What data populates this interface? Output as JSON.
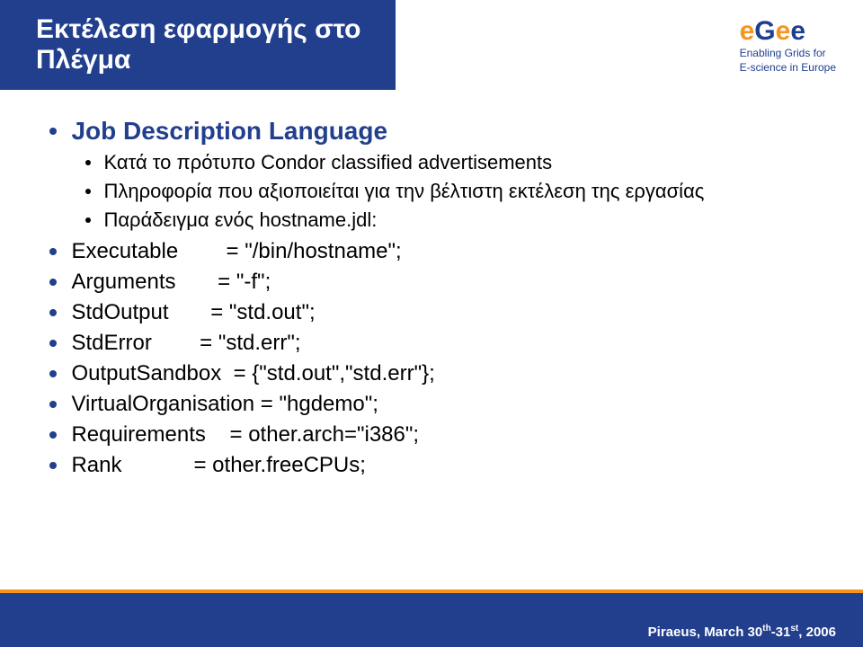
{
  "header": {
    "title": "Εκτέλεση εφαρμογής στο Πλέγμα"
  },
  "logo": {
    "tagline1": "Enabling Grids for",
    "tagline2": "E-science in Europe"
  },
  "main": {
    "heading": "Job Description Language",
    "sub1": "Κατά το πρότυπο Condor classified advertisements",
    "sub2": "Πληροφορία που αξιοποιείται για την βέλτιστη εκτέλεση της εργασίας",
    "sub3": "Παράδειγμα ενός hostname.jdl:"
  },
  "code": {
    "l1": "Executable        = \"/bin/hostname\";",
    "l2": "Arguments       = \"-f\";",
    "l3": "StdOutput       = \"std.out\";",
    "l4": "StdError        = \"std.err\";",
    "l5": "OutputSandbox  = {\"std.out\",\"std.err\"};",
    "l6": "VirtualOrganisation = \"hgdemo\";",
    "l7": "Requirements    = other.arch=\"i386\";",
    "l8": "Rank            = other.freeCPUs;"
  },
  "footer": {
    "text_part1": "Piraeus, March 30",
    "th": "th",
    "dash": "-31",
    "st": "st",
    "year": ", 2006"
  }
}
